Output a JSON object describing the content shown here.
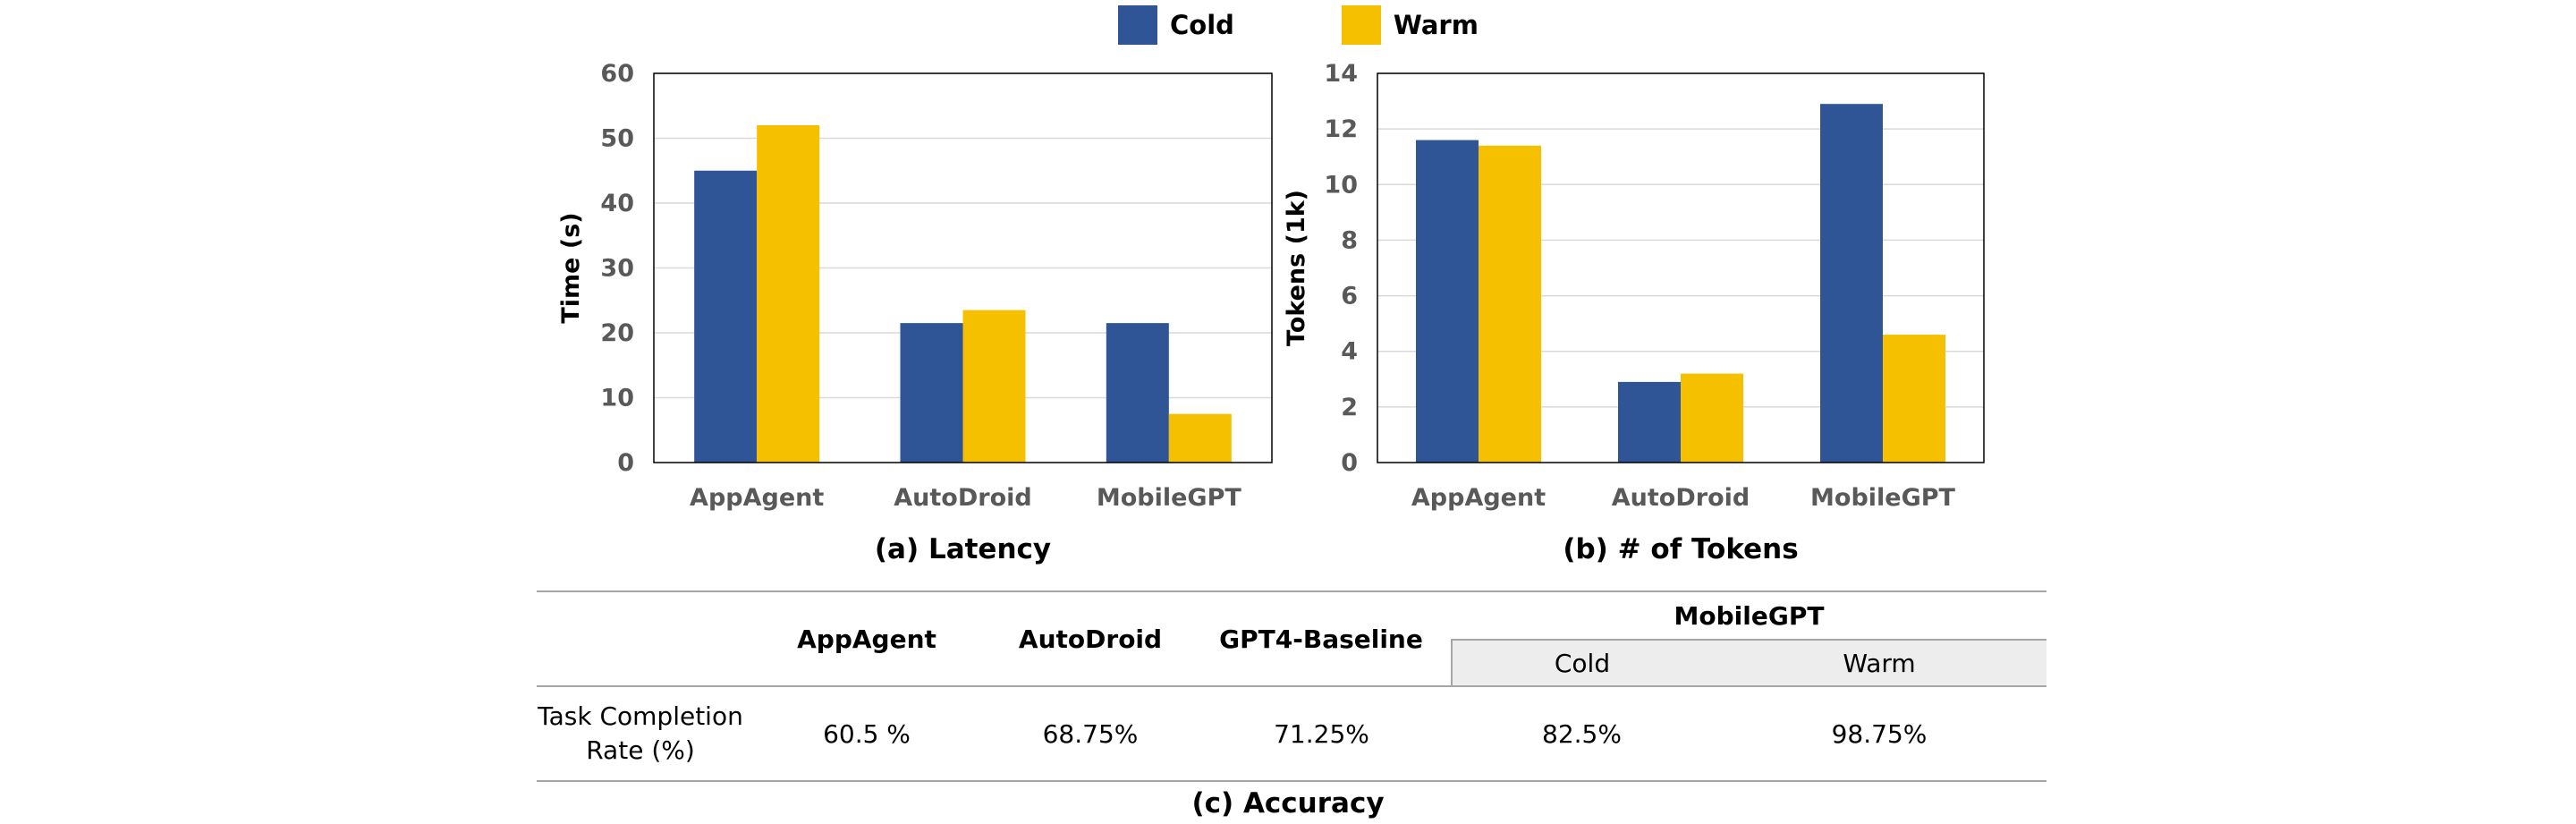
{
  "colors": {
    "cold": "#2F5597",
    "warm": "#F5C000",
    "grid": "#D9D9D9",
    "axis": "#000000"
  },
  "legend": {
    "cold": "Cold",
    "warm": "Warm"
  },
  "chart_data": [
    {
      "type": "bar",
      "title": "(a) Latency",
      "ylabel": "Time (s)",
      "categories": [
        "AppAgent",
        "AutoDroid",
        "MobileGPT"
      ],
      "ylim": [
        0,
        60
      ],
      "yticks": [
        0,
        10,
        20,
        30,
        40,
        50,
        60
      ],
      "grid": true,
      "series": [
        {
          "name": "Cold",
          "values": [
            45,
            21.5,
            21.5
          ]
        },
        {
          "name": "Warm",
          "values": [
            52,
            23.5,
            7.5
          ]
        }
      ]
    },
    {
      "type": "bar",
      "title": "(b) # of Tokens",
      "ylabel": "Tokens (1k)",
      "categories": [
        "AppAgent",
        "AutoDroid",
        "MobileGPT"
      ],
      "ylim": [
        0,
        14
      ],
      "yticks": [
        0,
        2,
        4,
        6,
        8,
        10,
        12,
        14
      ],
      "grid": true,
      "series": [
        {
          "name": "Cold",
          "values": [
            11.6,
            2.9,
            12.9
          ]
        },
        {
          "name": "Warm",
          "values": [
            11.4,
            3.2,
            4.6
          ]
        }
      ]
    },
    {
      "type": "table",
      "caption": "(c) Accuracy",
      "headers": [
        "AppAgent",
        "AutoDroid",
        "GPT4-Baseline",
        "MobileGPT"
      ],
      "subheaders": [
        "Cold",
        "Warm"
      ],
      "row_label_line1": "Task Completion",
      "row_label_line2": "Rate (%)",
      "values": [
        "60.5 %",
        "68.75%",
        "71.25%",
        "82.5%",
        "98.75%"
      ]
    }
  ]
}
